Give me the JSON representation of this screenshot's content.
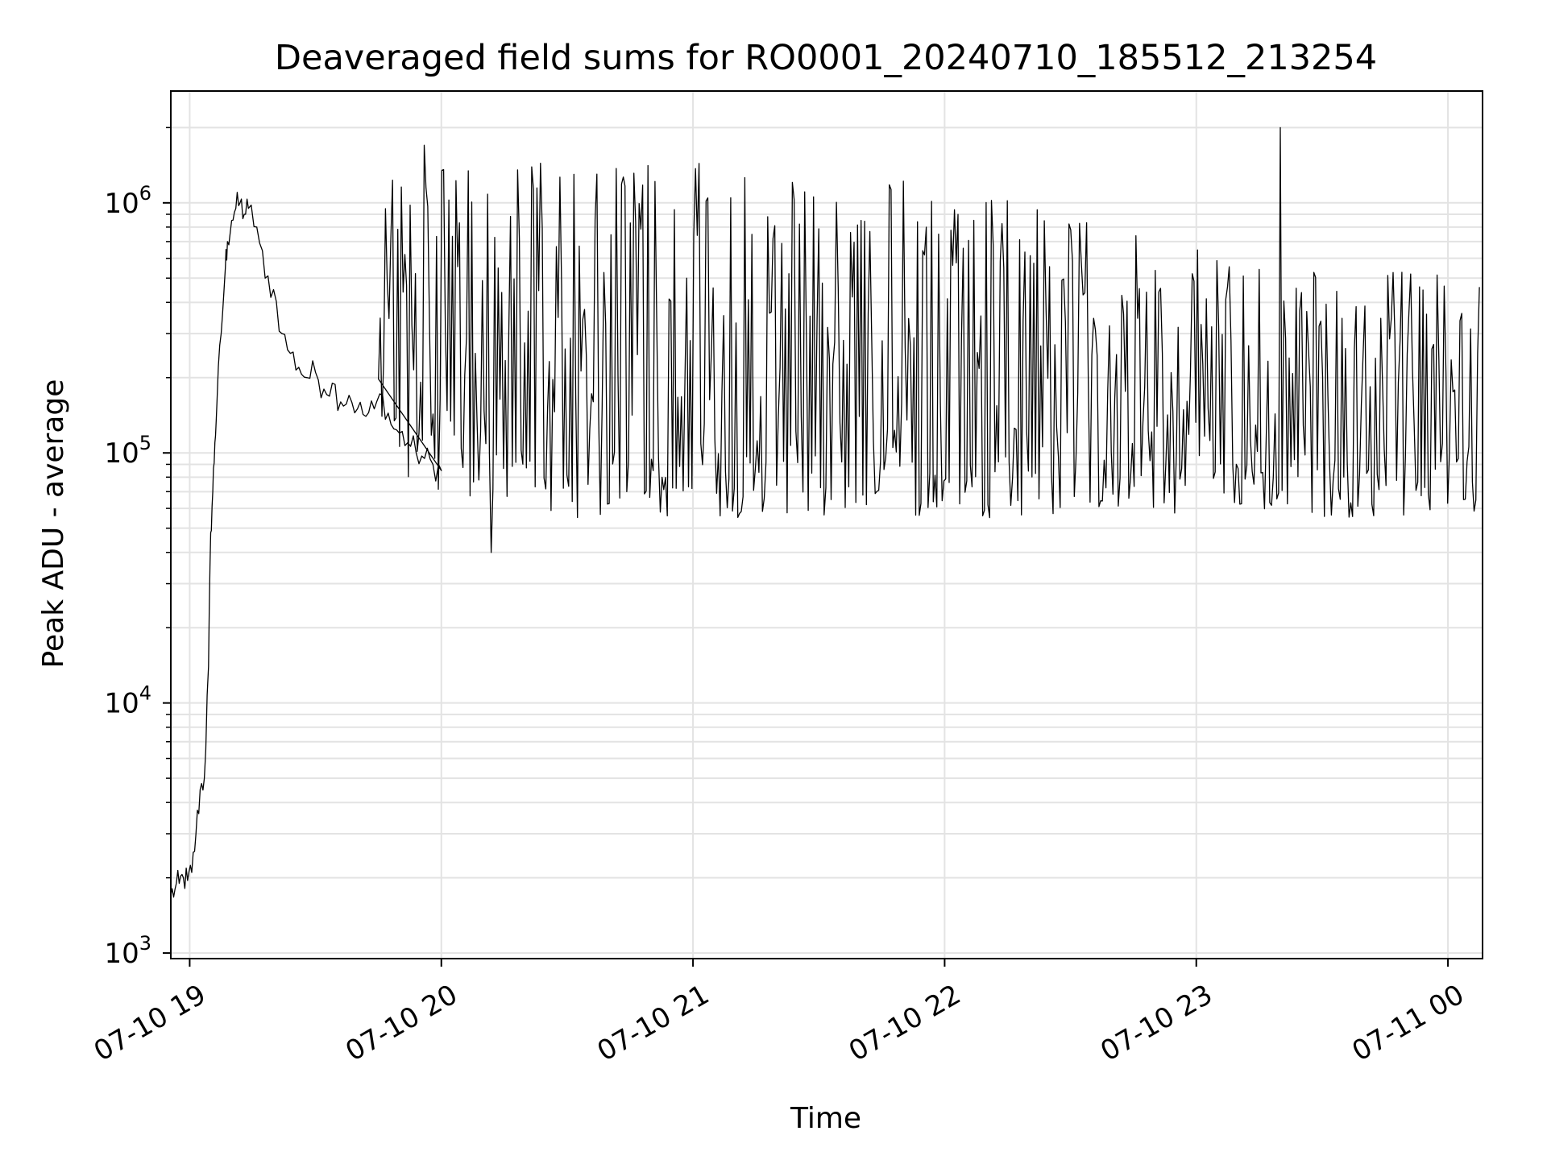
{
  "chart_data": {
    "type": "line",
    "title": "Deaveraged field sums for RO0001_20240710_185512_213254",
    "xlabel": "Time",
    "ylabel": "Peak ADU - average",
    "x_is_time": true,
    "y_scale": "log",
    "ylim": [
      950,
      2800000
    ],
    "xlim": [
      "2024-07-10 18:55:30",
      "2024-07-11 00:08:15"
    ],
    "x_ticks": [
      {
        "t": "2024-07-10 19:00:00",
        "label": "07-10 19"
      },
      {
        "t": "2024-07-10 20:00:00",
        "label": "07-10 20"
      },
      {
        "t": "2024-07-10 21:00:00",
        "label": "07-10 21"
      },
      {
        "t": "2024-07-10 22:00:00",
        "label": "07-10 22"
      },
      {
        "t": "2024-07-10 23:00:00",
        "label": "07-10 23"
      },
      {
        "t": "2024-07-11 00:00:00",
        "label": "07-11 00"
      }
    ],
    "y_ticks": [
      {
        "v": 1000,
        "base": "10",
        "exp": "3"
      },
      {
        "v": 10000,
        "base": "10",
        "exp": "4"
      },
      {
        "v": 100000,
        "base": "10",
        "exp": "5"
      },
      {
        "v": 1000000,
        "base": "10",
        "exp": "6"
      }
    ],
    "grid": true,
    "legend": "none",
    "line_color": "#000000",
    "series": [
      {
        "x": [
          "2024-07-10 18:55:30",
          "2024-07-10 18:56:30",
          "2024-07-10 18:57:30",
          "2024-07-10 18:58:30",
          "2024-07-10 18:59:30",
          "2024-07-10 19:00:30",
          "2024-07-10 19:01:30",
          "2024-07-10 19:02:30",
          "2024-07-10 19:03:30",
          "2024-07-10 19:04:30",
          "2024-07-10 19:05:00",
          "2024-07-10 19:05:30",
          "2024-07-10 19:06:00",
          "2024-07-10 19:06:30",
          "2024-07-10 19:07:30",
          "2024-07-10 19:08:30",
          "2024-07-10 19:09:00",
          "2024-07-10 19:10:00",
          "2024-07-10 19:11:00",
          "2024-07-10 19:12:00",
          "2024-07-10 19:13:00",
          "2024-07-10 19:14:00",
          "2024-07-10 19:16:00",
          "2024-07-10 19:18:00",
          "2024-07-10 19:20:00",
          "2024-07-10 19:22:00",
          "2024-07-10 19:24:00",
          "2024-07-10 19:26:00",
          "2024-07-10 19:28:00",
          "2024-07-10 19:30:00",
          "2024-07-10 19:32:00",
          "2024-07-10 19:34:00",
          "2024-07-10 19:36:00",
          "2024-07-10 19:38:00",
          "2024-07-10 19:40:00",
          "2024-07-10 19:42:00",
          "2024-07-10 19:44:00",
          "2024-07-10 19:46:00",
          "2024-07-10 19:48:00",
          "2024-07-10 19:50:00",
          "2024-07-10 19:52:00",
          "2024-07-10 19:54:00",
          "2024-07-10 19:56:00",
          "2024-07-10 19:58:00",
          "2024-07-10 20:00:00"
        ],
        "y": [
          1700,
          1800,
          1900,
          2000,
          1950,
          2100,
          3000,
          4500,
          5000,
          14000,
          48000,
          70000,
          110000,
          160000,
          300000,
          550000,
          700000,
          850000,
          950000,
          1000000,
          900000,
          950000,
          800000,
          500000,
          450000,
          300000,
          250000,
          220000,
          200000,
          210000,
          180000,
          190000,
          160000,
          170000,
          150000,
          140000,
          150000,
          170000,
          130000,
          120000,
          110000,
          100000,
          95000,
          90000,
          85000
        ]
      },
      {
        "x_range": [
          "2024-07-10 19:45:00",
          "2024-07-11 00:07:30"
        ],
        "x_step_minutes": 0.42,
        "envelope": [
          {
            "t": "2024-07-10 19:45:00",
            "low": 90000,
            "high": 1500000
          },
          {
            "t": "2024-07-10 20:15:00",
            "low": 55000,
            "high": 1500000
          },
          {
            "t": "2024-07-10 21:00:00",
            "low": 55000,
            "high": 1450000
          },
          {
            "t": "2024-07-10 21:30:00",
            "low": 55000,
            "high": 1350000
          },
          {
            "t": "2024-07-10 22:00:00",
            "low": 55000,
            "high": 1200000
          },
          {
            "t": "2024-07-10 22:30:00",
            "low": 55000,
            "high": 900000
          },
          {
            "t": "2024-07-10 23:00:00",
            "low": 55000,
            "high": 650000
          },
          {
            "t": "2024-07-10 23:30:00",
            "low": 55000,
            "high": 550000
          },
          {
            "t": "2024-07-11 00:07:30",
            "low": 55000,
            "high": 520000
          }
        ],
        "notable_points": [
          {
            "t": "2024-07-10 19:56:00",
            "v": 1700000
          },
          {
            "t": "2024-07-10 20:12:00",
            "v": 40000
          },
          {
            "t": "2024-07-10 23:20:00",
            "v": 2000000
          }
        ]
      }
    ]
  }
}
